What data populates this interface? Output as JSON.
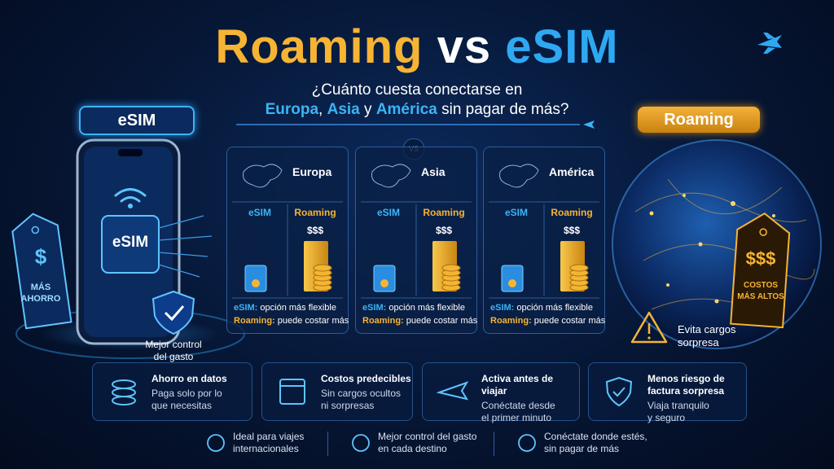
{
  "title": {
    "left": "Roaming",
    "middle": "vs",
    "right": "eSIM"
  },
  "subtitle": {
    "line1": "¿Cuánto cuesta conectarse en",
    "line2": [
      "Europa",
      ", ",
      "Asia",
      " y ",
      "América",
      " sin pagar de más?"
    ]
  },
  "esim_side": {
    "badge": "eSIM",
    "chip": "eSIM",
    "tag_symbol": "$",
    "tag_text": [
      "MÁS",
      "AHORRO"
    ],
    "shield_caption": [
      "Mejor control",
      "del gasto"
    ]
  },
  "roaming_side": {
    "badge": "Roaming",
    "tag_symbol": "$$$",
    "tag_text": [
      "COSTOS",
      "MÁS ALTOS"
    ],
    "warning": [
      "Evita cargos",
      "sorpresa"
    ]
  },
  "vs_badge": "VS",
  "regions": [
    {
      "name": "Europa",
      "col_esim": "eSIM",
      "col_roaming": "Roaming",
      "cost": "$$$",
      "note_esim": {
        "label": "eSIM:",
        "text": " opción más flexible"
      },
      "note_roaming": {
        "label": "Roaming:",
        "text": " puede costar más"
      }
    },
    {
      "name": "Asia",
      "col_esim": "eSIM",
      "col_roaming": "Roaming",
      "cost": "$$$",
      "note_esim": {
        "label": "eSIM:",
        "text": " opción más flexible"
      },
      "note_roaming": {
        "label": "Roaming:",
        "text": " puede costar más"
      }
    },
    {
      "name": "América",
      "col_esim": "eSIM",
      "col_roaming": "Roaming",
      "cost": "$$$",
      "note_esim": {
        "label": "eSIM:",
        "text": " opción más flexible"
      },
      "note_roaming": {
        "label": "Roaming:",
        "text": " puede costar más"
      }
    }
  ],
  "features": [
    {
      "title": [
        "Ahorro en datos"
      ],
      "desc": [
        "Paga solo por lo",
        "que necesitas"
      ]
    },
    {
      "title": [
        "Costos predecibles"
      ],
      "desc": [
        "Sin cargos ocultos",
        "ni sorpresas"
      ]
    },
    {
      "title": [
        "Activa antes de viajar"
      ],
      "desc": [
        "Conéctate desde",
        "el primer minuto"
      ]
    },
    {
      "title": [
        "Menos riesgo de",
        "factura sorpresa"
      ],
      "desc": [
        "Viaja tranquilo",
        "y seguro"
      ]
    }
  ],
  "footer": [
    [
      "Ideal para viajes",
      "internacionales"
    ],
    [
      "Mejor control del gasto",
      "en cada destino"
    ],
    [
      "Conéctate donde estés,",
      "sin pagar de más"
    ]
  ]
}
